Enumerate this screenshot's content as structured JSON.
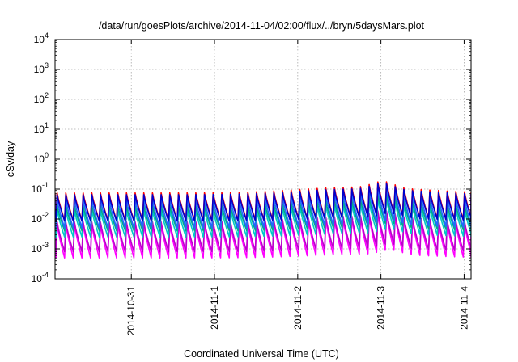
{
  "chart_data": {
    "type": "line",
    "title": "/data/run/goesPlots/archive/2014-11-04/02:00/flux/../bryn/5daysMars.plot",
    "xlabel": "Coordinated Universal Time (UTC)",
    "ylabel": "cSv/day",
    "y_scale": "log",
    "ylim": [
      0.0001,
      10000
    ],
    "xlim": [
      "2014-10-30 02:00",
      "2014-11-04 02:00"
    ],
    "y_ticks": [
      {
        "value": 0.0001,
        "base": "10",
        "exp": "-4"
      },
      {
        "value": 0.001,
        "base": "10",
        "exp": "-3"
      },
      {
        "value": 0.01,
        "base": "10",
        "exp": "-2"
      },
      {
        "value": 0.1,
        "base": "10",
        "exp": "-1"
      },
      {
        "value": 1,
        "base": "10",
        "exp": "0"
      },
      {
        "value": 10,
        "base": "10",
        "exp": "1"
      },
      {
        "value": 100,
        "base": "10",
        "exp": "2"
      },
      {
        "value": 1000,
        "base": "10",
        "exp": "3"
      },
      {
        "value": 10000,
        "base": "10",
        "exp": "4"
      }
    ],
    "x_ticks": [
      {
        "label": "2014-10-31",
        "hours": 22
      },
      {
        "label": "2014-11-1",
        "hours": 46
      },
      {
        "label": "2014-11-2",
        "hours": 70
      },
      {
        "label": "2014-11-3",
        "hours": 94
      },
      {
        "label": "2014-11-4",
        "hours": 118
      }
    ],
    "grid": true,
    "legend": "none",
    "sawtooth": {
      "period_hours": 2.5,
      "first_peak_hours": 0.6
    },
    "series": [
      {
        "color": "#ff00ff",
        "peak": 0.0065,
        "trough": 0.0005
      },
      {
        "color": "#bb00cc",
        "peak": 0.008,
        "trough": 0.0008
      },
      {
        "color": "#00c8c8",
        "peak": 0.02,
        "trough": 0.0025
      },
      {
        "color": "#00aa88",
        "peak": 0.028,
        "trough": 0.004
      },
      {
        "color": "#2266ff",
        "peak": 0.045,
        "trough": 0.005
      },
      {
        "color": "#ff0000",
        "peak": 0.075,
        "trough": 0.009
      },
      {
        "color": "#0000cc",
        "peak": 0.065,
        "trough": 0.0085
      }
    ]
  }
}
